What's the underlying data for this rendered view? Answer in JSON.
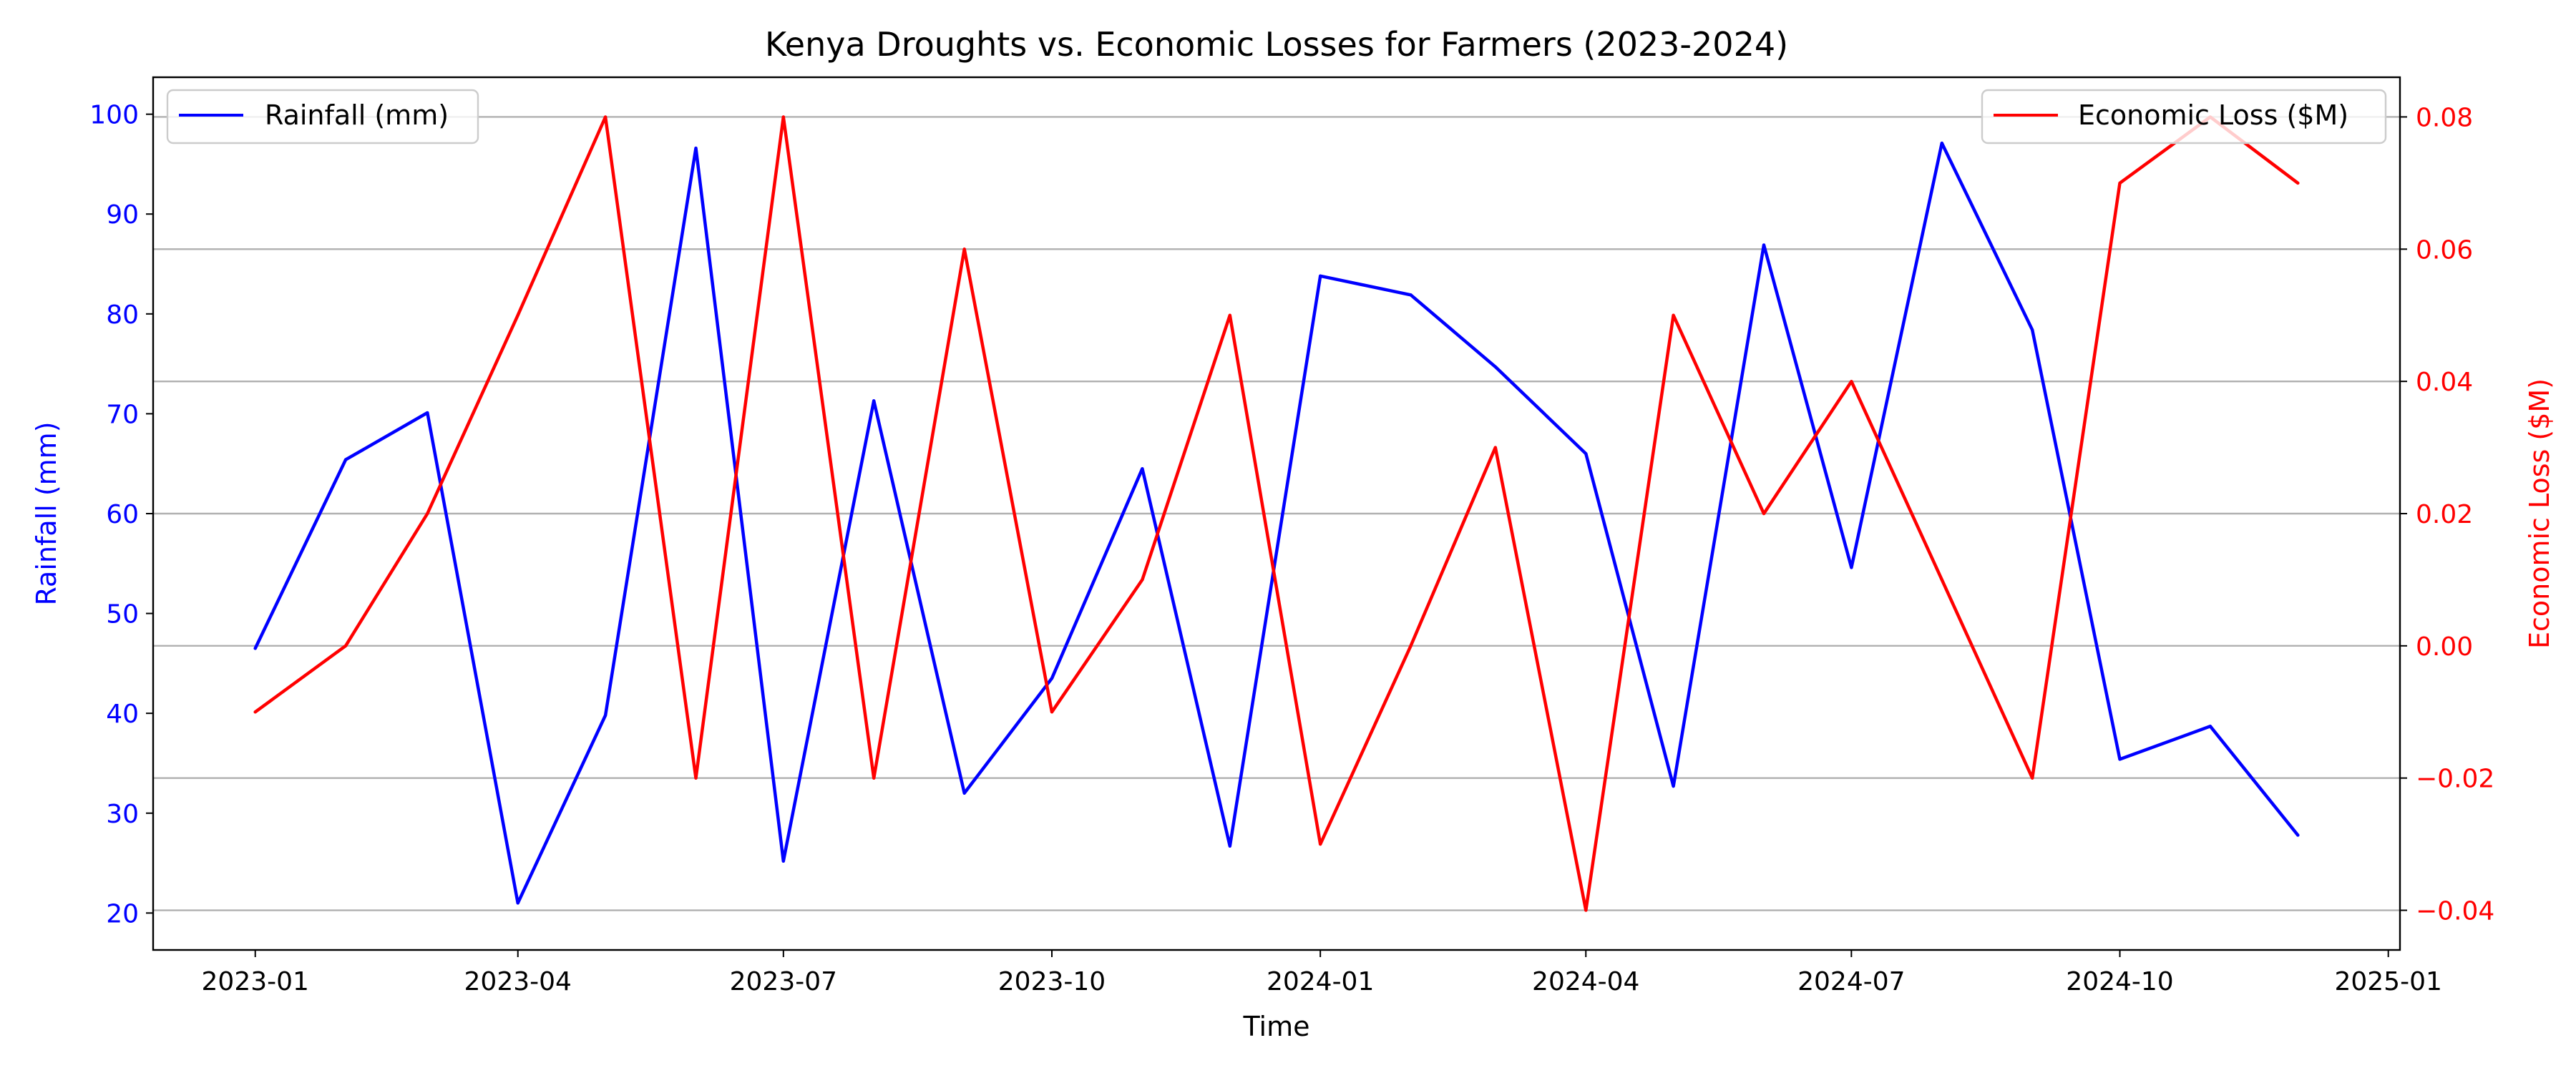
{
  "chart_data": {
    "type": "line",
    "title": "Kenya Droughts vs. Economic Losses for Farmers (2023-2024)",
    "xlabel": "Time",
    "y_left_label": "Rainfall (mm)",
    "y_right_label": "Economic Loss ($M)",
    "x": [
      "2023-01",
      "2023-02",
      "2023-03",
      "2023-04",
      "2023-05",
      "2023-06",
      "2023-07",
      "2023-08",
      "2023-09",
      "2023-10",
      "2023-11",
      "2023-12",
      "2024-01",
      "2024-02",
      "2024-03",
      "2024-04",
      "2024-05",
      "2024-06",
      "2024-07",
      "2024-08",
      "2024-09",
      "2024-10",
      "2024-11",
      "2024-12"
    ],
    "x_ticks": [
      "2023-01",
      "2023-04",
      "2023-07",
      "2023-10",
      "2024-01",
      "2024-04",
      "2024-07",
      "2024-10",
      "2025-01"
    ],
    "y_left_ticks": [
      20,
      30,
      40,
      50,
      60,
      70,
      80,
      90,
      100
    ],
    "y_right_ticks": [
      -0.04,
      -0.02,
      0.0,
      0.02,
      0.04,
      0.06,
      0.08
    ],
    "y_right_tick_labels": [
      "−0.04",
      "−0.02",
      "0.00",
      "0.02",
      "0.04",
      "0.06",
      "0.08"
    ],
    "ylim_left": [
      16.3,
      103.7
    ],
    "ylim_right": [
      -0.046,
      0.086
    ],
    "grid": "horizontal (right axis)",
    "series": [
      {
        "name": "Rainfall (mm)",
        "axis": "left",
        "color": "#0000ff",
        "values": [
          46.5,
          65.4,
          70.1,
          21.0,
          39.8,
          96.6,
          25.2,
          71.3,
          32.0,
          43.5,
          64.5,
          26.7,
          83.8,
          81.9,
          74.7,
          66.0,
          32.7,
          86.9,
          54.6,
          97.1,
          78.4,
          35.4,
          38.7,
          27.8
        ]
      },
      {
        "name": "Economic Loss ($M)",
        "axis": "right",
        "color": "#ff0000",
        "values": [
          -0.01,
          0.0,
          0.02,
          0.05,
          0.08,
          -0.02,
          0.08,
          -0.02,
          0.06,
          -0.01,
          0.01,
          0.05,
          -0.03,
          0.0,
          0.03,
          -0.04,
          0.05,
          0.02,
          0.04,
          0.01,
          -0.02,
          0.07,
          0.08,
          0.07
        ]
      }
    ],
    "legends": [
      {
        "label": "Rainfall (mm)",
        "placement": "upper-left"
      },
      {
        "label": "Economic Loss ($M)",
        "placement": "upper-right"
      }
    ]
  }
}
